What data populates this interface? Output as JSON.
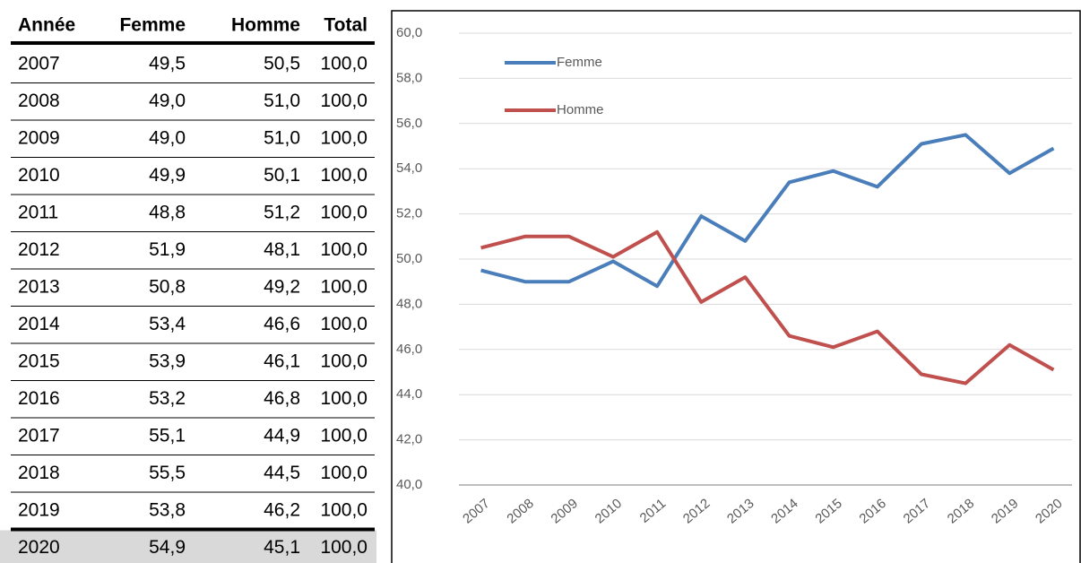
{
  "table": {
    "header": [
      "Année",
      "Femme",
      "Homme",
      "Total"
    ],
    "rows": [
      [
        "2007",
        "49,5",
        "50,5",
        "100,0"
      ],
      [
        "2008",
        "49,0",
        "51,0",
        "100,0"
      ],
      [
        "2009",
        "49,0",
        "51,0",
        "100,0"
      ],
      [
        "2010",
        "49,9",
        "50,1",
        "100,0"
      ],
      [
        "2011",
        "48,8",
        "51,2",
        "100,0"
      ],
      [
        "2012",
        "51,9",
        "48,1",
        "100,0"
      ],
      [
        "2013",
        "50,8",
        "49,2",
        "100,0"
      ],
      [
        "2014",
        "53,4",
        "46,6",
        "100,0"
      ],
      [
        "2015",
        "53,9",
        "46,1",
        "100,0"
      ],
      [
        "2016",
        "53,2",
        "46,8",
        "100,0"
      ],
      [
        "2017",
        "55,1",
        "44,9",
        "100,0"
      ],
      [
        "2018",
        "55,5",
        "44,5",
        "100,0"
      ],
      [
        "2019",
        "53,8",
        "46,2",
        "100,0"
      ],
      [
        "2020",
        "54,9",
        "45,1",
        "100,0"
      ]
    ]
  },
  "chart_data": {
    "type": "line",
    "categories": [
      "2007",
      "2008",
      "2009",
      "2010",
      "2011",
      "2012",
      "2013",
      "2014",
      "2015",
      "2016",
      "2017",
      "2018",
      "2019",
      "2020"
    ],
    "series": [
      {
        "name": "Femme",
        "color": "#4a7ebb",
        "values": [
          49.5,
          49.0,
          49.0,
          49.9,
          48.8,
          51.9,
          50.8,
          53.4,
          53.9,
          53.2,
          55.1,
          55.5,
          53.8,
          54.9
        ]
      },
      {
        "name": "Homme",
        "color": "#c0504d",
        "values": [
          50.5,
          51.0,
          51.0,
          50.1,
          51.2,
          48.1,
          49.2,
          46.6,
          46.1,
          46.8,
          44.9,
          44.5,
          46.2,
          45.1
        ]
      }
    ],
    "ylim": [
      40,
      60
    ],
    "yticks": [
      {
        "value": 40,
        "label": "40,0"
      },
      {
        "value": 42,
        "label": "42,0"
      },
      {
        "value": 44,
        "label": "44,0"
      },
      {
        "value": 46,
        "label": "46,0"
      },
      {
        "value": 48,
        "label": "48,0"
      },
      {
        "value": 50,
        "label": "50,0"
      },
      {
        "value": 52,
        "label": "52,0"
      },
      {
        "value": 54,
        "label": "54,0"
      },
      {
        "value": 56,
        "label": "56,0"
      },
      {
        "value": 58,
        "label": "58,0"
      },
      {
        "value": 60,
        "label": "60,0"
      }
    ],
    "grid": true,
    "legend": "top-left"
  }
}
